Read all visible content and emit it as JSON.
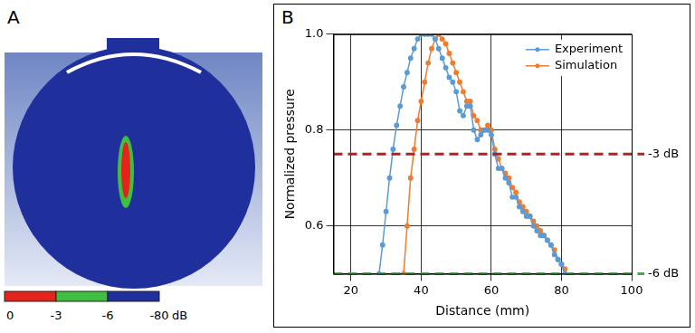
{
  "panel_a": {
    "label": "A",
    "colorbar": {
      "ticks": [
        0,
        -3,
        -6,
        -80
      ],
      "unit": "dB",
      "colors": [
        "#e3231c",
        "#3fbf3f",
        "#1f2f9c"
      ]
    }
  },
  "chart_data": {
    "type": "line",
    "label": "B",
    "x_label": "Distance (mm)",
    "y_label": "Normalized pressure",
    "xlim": [
      15,
      100
    ],
    "xticks": [
      20,
      40,
      60,
      80,
      100
    ],
    "ylim": [
      0.5,
      1.0
    ],
    "yticks": [
      0.6,
      0.8,
      {
        "value": 1,
        "label": "1.0"
      }
    ],
    "grid": true,
    "legend": "upper right",
    "marker": "circle",
    "series": [
      {
        "name": "Experiment",
        "color": "#5b9bd5",
        "x": [
          28,
          29,
          30,
          31,
          32,
          33,
          34,
          35,
          36,
          37,
          38,
          39,
          40,
          41,
          42,
          43,
          44,
          45,
          46,
          47,
          48,
          49,
          50,
          51,
          52,
          53,
          54,
          55,
          56,
          57,
          58,
          59,
          60,
          61,
          62,
          63,
          64,
          65,
          66,
          67,
          68,
          69,
          70,
          71,
          72,
          73,
          74,
          75,
          76,
          77,
          78,
          79,
          80,
          81
        ],
        "values": [
          0.5,
          0.56,
          0.63,
          0.7,
          0.76,
          0.81,
          0.85,
          0.89,
          0.92,
          0.95,
          0.97,
          0.99,
          1.0,
          1.0,
          1.0,
          1.0,
          0.99,
          0.97,
          0.95,
          0.93,
          0.91,
          0.9,
          0.88,
          0.84,
          0.83,
          0.85,
          0.85,
          0.8,
          0.78,
          0.79,
          0.8,
          0.8,
          0.79,
          0.75,
          0.72,
          0.72,
          0.7,
          0.69,
          0.66,
          0.66,
          0.64,
          0.63,
          0.62,
          0.62,
          0.6,
          0.59,
          0.58,
          0.58,
          0.57,
          0.56,
          0.54,
          0.53,
          0.52,
          0.5
        ]
      },
      {
        "name": "Simulation",
        "color": "#ed7d31",
        "x": [
          35,
          36,
          37,
          38,
          39,
          40,
          41,
          42,
          43,
          44,
          45,
          46,
          47,
          48,
          49,
          50,
          51,
          52,
          53,
          54,
          55,
          56,
          57,
          58,
          59,
          60,
          61,
          62,
          63,
          64,
          65,
          66,
          67,
          68,
          69,
          70,
          71,
          72,
          73,
          74,
          75,
          76,
          77,
          78,
          79,
          80,
          81
        ],
        "values": [
          0.5,
          0.6,
          0.7,
          0.76,
          0.82,
          0.86,
          0.9,
          0.94,
          0.97,
          0.99,
          1.0,
          0.99,
          0.98,
          0.96,
          0.94,
          0.92,
          0.9,
          0.88,
          0.86,
          0.86,
          0.83,
          0.82,
          0.8,
          0.8,
          0.81,
          0.8,
          0.76,
          0.74,
          0.72,
          0.71,
          0.7,
          0.68,
          0.67,
          0.65,
          0.64,
          0.63,
          0.62,
          0.61,
          0.6,
          0.59,
          0.58,
          0.57,
          0.56,
          0.55,
          0.53,
          0.52,
          0.51
        ]
      }
    ],
    "reference_lines": [
      {
        "value": 0.75,
        "label": "-3 dB",
        "color": "#b22222",
        "line_style": "dashed"
      },
      {
        "value": 0.5,
        "label": "-6 dB",
        "color": "#3cb043",
        "line_style": "dashed"
      }
    ]
  }
}
